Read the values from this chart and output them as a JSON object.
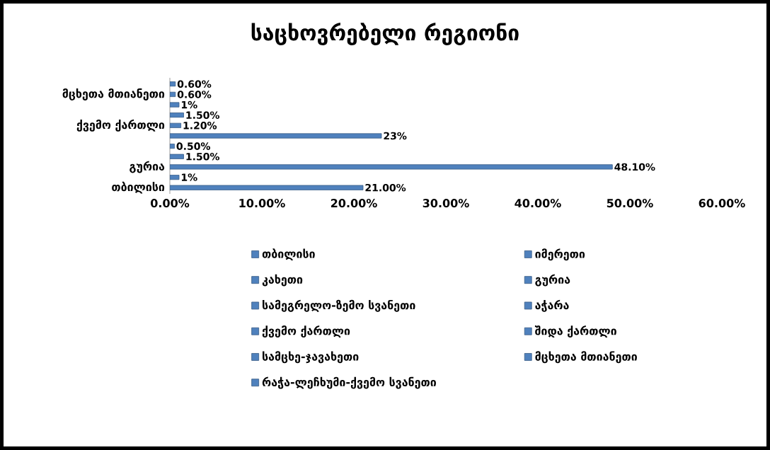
{
  "chart_data": {
    "type": "bar",
    "orientation": "horizontal",
    "stacked": true,
    "title": "საცხოვრებელი რეგიონი",
    "categories": [
      null,
      "მცხეთა მთიანეთი",
      null,
      null,
      "ქვემო ქართლი",
      null,
      null,
      null,
      "გურია",
      null,
      "თბილისი"
    ],
    "series": [
      {
        "name": "თბილისი",
        "color": "#4f81bd",
        "values": [
          null,
          null,
          null,
          null,
          null,
          null,
          null,
          null,
          null,
          null,
          21.0
        ],
        "value_labels": [
          null,
          null,
          null,
          null,
          null,
          null,
          null,
          null,
          null,
          null,
          "21.00%"
        ]
      },
      {
        "name": "იმერეთი",
        "color": "#4f81bd",
        "values": [
          null,
          null,
          null,
          null,
          null,
          null,
          null,
          null,
          null,
          1,
          null
        ],
        "value_labels": [
          null,
          null,
          null,
          null,
          null,
          null,
          null,
          null,
          null,
          "1%",
          null
        ]
      },
      {
        "name": "კახეთი",
        "color": "#4f81bd",
        "values": [
          null,
          null,
          null,
          null,
          null,
          null,
          null,
          null,
          48.1,
          null,
          null
        ],
        "value_labels": [
          null,
          null,
          null,
          null,
          null,
          null,
          null,
          null,
          "48.10%",
          null,
          null
        ]
      },
      {
        "name": "გურია",
        "color": "#4f81bd",
        "values": [
          null,
          null,
          null,
          null,
          null,
          null,
          null,
          1.5,
          null,
          null,
          null
        ],
        "value_labels": [
          null,
          null,
          null,
          null,
          null,
          null,
          null,
          "1.50%",
          null,
          null,
          null
        ]
      },
      {
        "name": "სამეგრელო-ზემო სვანეთი",
        "color": "#4f81bd",
        "values": [
          null,
          null,
          null,
          null,
          null,
          null,
          0.5,
          null,
          null,
          null,
          null
        ],
        "value_labels": [
          null,
          null,
          null,
          null,
          null,
          null,
          "0.50%",
          null,
          null,
          null,
          null
        ]
      },
      {
        "name": "აჭარა",
        "color": "#4f81bd",
        "values": [
          null,
          null,
          null,
          null,
          null,
          23,
          null,
          null,
          null,
          null,
          null
        ],
        "value_labels": [
          null,
          null,
          null,
          null,
          null,
          "23%",
          null,
          null,
          null,
          null,
          null
        ]
      },
      {
        "name": "ქვემო ქართლი",
        "color": "#4f81bd",
        "values": [
          null,
          null,
          null,
          null,
          1.2,
          null,
          null,
          null,
          null,
          null,
          null
        ],
        "value_labels": [
          null,
          null,
          null,
          null,
          "1.20%",
          null,
          null,
          null,
          null,
          null,
          null
        ]
      },
      {
        "name": "შიდა ქართლი",
        "color": "#4f81bd",
        "values": [
          null,
          null,
          null,
          1.5,
          null,
          null,
          null,
          null,
          null,
          null,
          null
        ],
        "value_labels": [
          null,
          null,
          null,
          "1.50%",
          null,
          null,
          null,
          null,
          null,
          null,
          null
        ]
      },
      {
        "name": "სამცხე-ჯავახეთი",
        "color": "#4f81bd",
        "values": [
          null,
          null,
          1,
          null,
          null,
          null,
          null,
          null,
          null,
          null,
          null
        ],
        "value_labels": [
          null,
          null,
          "1%",
          null,
          null,
          null,
          null,
          null,
          null,
          null,
          null
        ]
      },
      {
        "name": "მცხეთა მთიანეთი",
        "color": "#4f81bd",
        "values": [
          null,
          0.6,
          null,
          null,
          null,
          null,
          null,
          null,
          null,
          null,
          null
        ],
        "value_labels": [
          null,
          "0.60%",
          null,
          null,
          null,
          null,
          null,
          null,
          null,
          null,
          null
        ]
      },
      {
        "name": "რაჭა-ლეჩხუმი-ქვემო სვანეთი",
        "color": "#4f81bd",
        "values": [
          0.6,
          null,
          null,
          null,
          null,
          null,
          null,
          null,
          null,
          null,
          null
        ],
        "value_labels": [
          "0.60%",
          null,
          null,
          null,
          null,
          null,
          null,
          null,
          null,
          null,
          null
        ]
      }
    ],
    "xlim": [
      0,
      60
    ],
    "xticks": [
      {
        "value": 0,
        "label": "0.00%"
      },
      {
        "value": 10,
        "label": "10.00%"
      },
      {
        "value": 20,
        "label": "20.00%"
      },
      {
        "value": 30,
        "label": "30.00%"
      },
      {
        "value": 40,
        "label": "40.00%"
      },
      {
        "value": 50,
        "label": "50.00%"
      },
      {
        "value": 60,
        "label": "60.00%"
      }
    ],
    "legend": "bottom"
  }
}
